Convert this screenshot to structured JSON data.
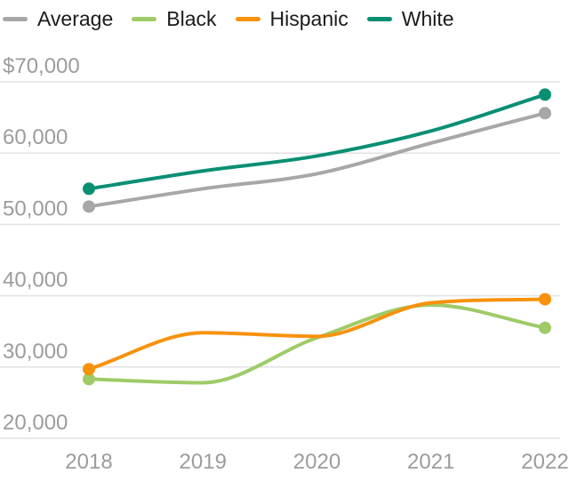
{
  "chart_data": {
    "type": "line",
    "x": [
      2018,
      2019,
      2020,
      2021,
      2022
    ],
    "x_tick_labels": [
      "2018",
      "2019",
      "2020",
      "2021",
      "2022"
    ],
    "series": [
      {
        "name": "Average",
        "color": "#a7a7a7",
        "values": [
          52500,
          55000,
          57100,
          61400,
          65600
        ]
      },
      {
        "name": "Black",
        "color": "#9ecb68",
        "values": [
          28300,
          27800,
          34100,
          38700,
          35500
        ]
      },
      {
        "name": "Hispanic",
        "color": "#f7920d",
        "values": [
          29700,
          34800,
          34300,
          39000,
          39500
        ]
      },
      {
        "name": "White",
        "color": "#0a8f73",
        "values": [
          55000,
          57500,
          59600,
          63100,
          68200
        ]
      }
    ],
    "y_ticks": [
      {
        "value": 70000,
        "label": "$70,000"
      },
      {
        "value": 60000,
        "label": "60,000"
      },
      {
        "value": 50000,
        "label": "50,000"
      },
      {
        "value": 40000,
        "label": "40,000"
      },
      {
        "value": 30000,
        "label": "30,000"
      },
      {
        "value": 20000,
        "label": "20,000"
      }
    ],
    "ylim": [
      20000,
      70000
    ],
    "grid": true,
    "legend_position": "top",
    "line_style": "smooth-monotone",
    "endpoint_dots": true,
    "colors": {
      "gridline": "#e2e2e2",
      "tick_label": "#9c9c9c",
      "legend_text": "#1b1b1b",
      "background": "#ffffff"
    }
  }
}
